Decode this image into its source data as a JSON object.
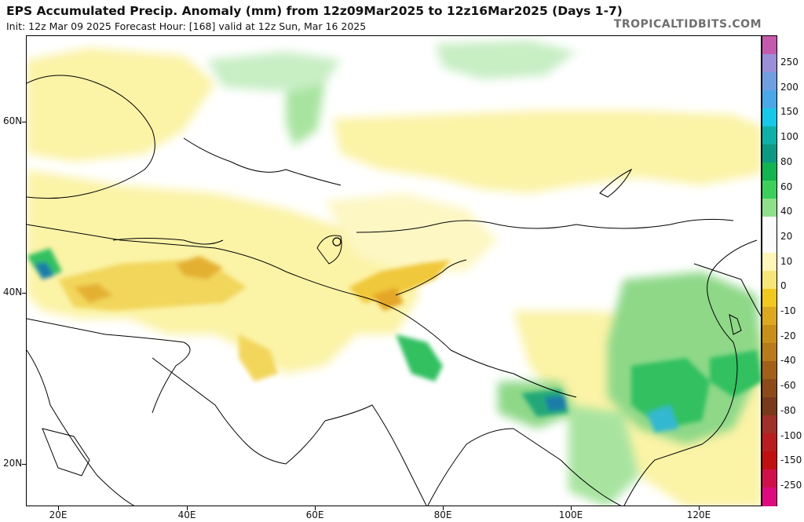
{
  "header": {
    "title": "EPS Accumulated Precip. Anomaly (mm) from 12z09Mar2025 to 12z16Mar2025 (Days 1-7)",
    "subtitle": "Init: 12z Mar 09 2025   Forecast Hour: [168]   valid at 12z Sun, Mar 16 2025",
    "credit": "TROPICALTIDBITS.COM"
  },
  "axes": {
    "lat_labels": [
      "60N",
      "40N",
      "20N"
    ],
    "lon_labels": [
      "20E",
      "40E",
      "60E",
      "80E",
      "100E",
      "120E"
    ]
  },
  "colorbar": {
    "labels": [
      "250",
      "200",
      "150",
      "100",
      "80",
      "60",
      "40",
      "20",
      "10",
      "0",
      "-10",
      "-20",
      "-40",
      "-60",
      "-80",
      "-100",
      "-150",
      "-250"
    ],
    "colors": [
      "#c45aab",
      "#9a8fd8",
      "#6f9fe0",
      "#4aa8e8",
      "#18c8e8",
      "#0eb0a8",
      "#0c9a84",
      "#10b450",
      "#3cd05a",
      "#8ee08a",
      "#fbfbfb",
      "#fbfbfb",
      "#fef6b8",
      "#f6e67a",
      "#f0c81e",
      "#dca820",
      "#c8901a",
      "#b87a1a",
      "#a0601a",
      "#8c4a18",
      "#783a1a",
      "#a0302a",
      "#b81e20",
      "#c01010",
      "#d0104a",
      "#e00a80"
    ]
  }
}
